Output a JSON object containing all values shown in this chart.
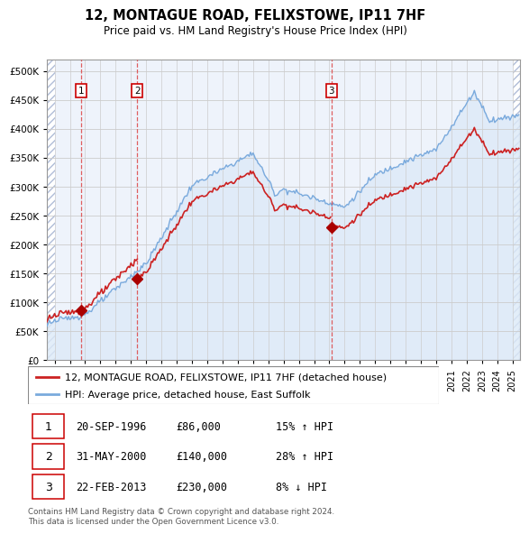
{
  "title": "12, MONTAGUE ROAD, FELIXSTOWE, IP11 7HF",
  "subtitle": "Price paid vs. HM Land Registry's House Price Index (HPI)",
  "property_label": "12, MONTAGUE ROAD, FELIXSTOWE, IP11 7HF (detached house)",
  "hpi_label": "HPI: Average price, detached house, East Suffolk",
  "footnote": "Contains HM Land Registry data © Crown copyright and database right 2024.\nThis data is licensed under the Open Government Licence v3.0.",
  "sales": [
    {
      "num": 1,
      "date_label": "20-SEP-1996",
      "price": 86000,
      "pct": "15%",
      "dir": "↑",
      "year": 1996.72
    },
    {
      "num": 2,
      "date_label": "31-MAY-2000",
      "price": 140000,
      "pct": "28%",
      "dir": "↑",
      "year": 2000.42
    },
    {
      "num": 3,
      "date_label": "22-FEB-2013",
      "price": 230000,
      "pct": "8%",
      "dir": "↓",
      "year": 2013.14
    }
  ],
  "ylim": [
    0,
    520000
  ],
  "yticks": [
    0,
    50000,
    100000,
    150000,
    200000,
    250000,
    300000,
    350000,
    400000,
    450000,
    500000
  ],
  "xlim_start": 1994.5,
  "xlim_end": 2025.5,
  "property_color": "#cc2222",
  "hpi_color": "#7aaadd",
  "hpi_fill_color": "#ddeaf8",
  "sale_marker_color": "#aa0000",
  "vline_color": "#dd4444",
  "bg_color": "#eef3fb",
  "hatch_color": "#d0daf0",
  "grid_color": "#cccccc",
  "spine_color": "#999999"
}
